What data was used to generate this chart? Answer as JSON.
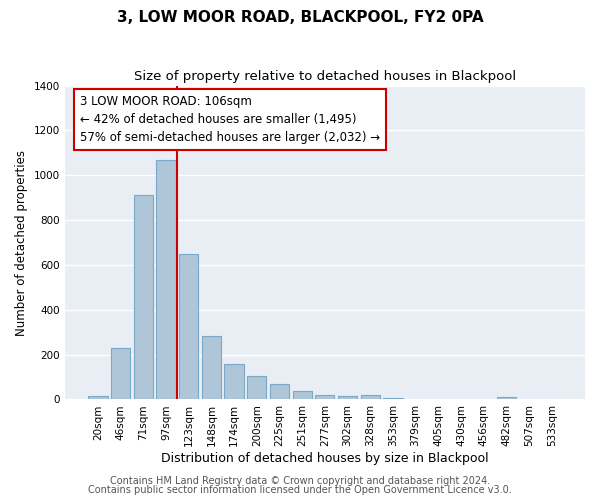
{
  "title": "3, LOW MOOR ROAD, BLACKPOOL, FY2 0PA",
  "subtitle": "Size of property relative to detached houses in Blackpool",
  "xlabel": "Distribution of detached houses by size in Blackpool",
  "ylabel": "Number of detached properties",
  "bar_labels": [
    "20sqm",
    "46sqm",
    "71sqm",
    "97sqm",
    "123sqm",
    "148sqm",
    "174sqm",
    "200sqm",
    "225sqm",
    "251sqm",
    "277sqm",
    "302sqm",
    "328sqm",
    "353sqm",
    "379sqm",
    "405sqm",
    "430sqm",
    "456sqm",
    "482sqm",
    "507sqm",
    "533sqm"
  ],
  "bar_values": [
    15,
    230,
    910,
    1070,
    650,
    285,
    158,
    105,
    68,
    38,
    22,
    15,
    18,
    8,
    0,
    0,
    0,
    0,
    10,
    0,
    0
  ],
  "bar_color": "#aec6d8",
  "bar_edge_color": "#7aa8c8",
  "property_line_label": "3 LOW MOOR ROAD: 106sqm",
  "annotation_line1": "← 42% of detached houses are smaller (1,495)",
  "annotation_line2": "57% of semi-detached houses are larger (2,032) →",
  "vline_color": "#cc0000",
  "vline_x_index": 3.5,
  "ylim": [
    0,
    1400
  ],
  "yticks": [
    0,
    200,
    400,
    600,
    800,
    1000,
    1200,
    1400
  ],
  "footnote1": "Contains HM Land Registry data © Crown copyright and database right 2024.",
  "footnote2": "Contains public sector information licensed under the Open Government Licence v3.0.",
  "box_facecolor": "#ffffff",
  "box_edge_color": "#cc0000",
  "background_color": "#ffffff",
  "plot_bg_color": "#e8eef4",
  "grid_color": "#ffffff",
  "title_fontsize": 11,
  "subtitle_fontsize": 9.5,
  "xlabel_fontsize": 9,
  "ylabel_fontsize": 8.5,
  "tick_fontsize": 7.5,
  "annotation_fontsize": 8.5,
  "footnote_fontsize": 7
}
